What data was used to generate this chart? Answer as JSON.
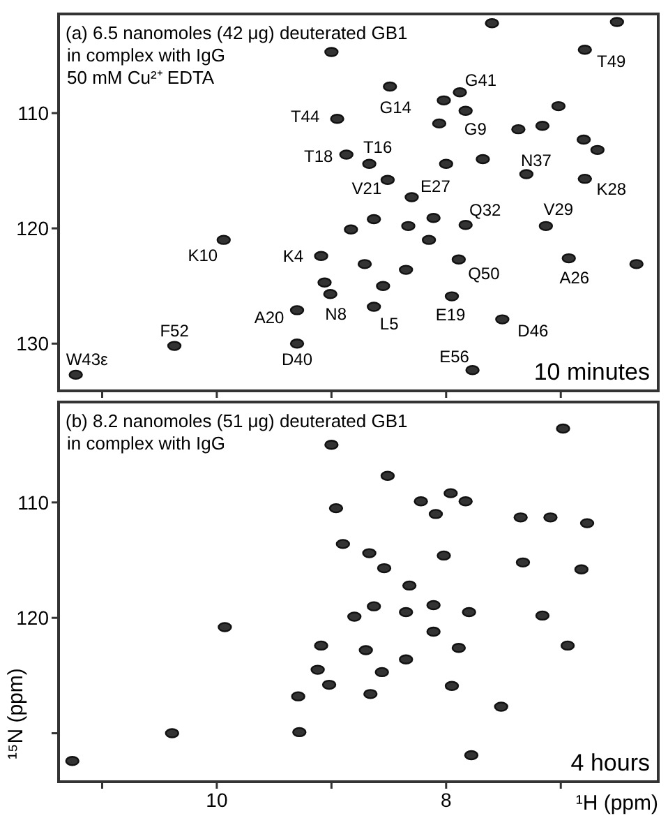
{
  "chart_data": [
    {
      "type": "scatter",
      "title": "(a) 6.5 nanomoles (42 μg) deuterated GB1",
      "subtitle": "in complex with IgG\n50 mM Cu²⁺ EDTA",
      "marker": "circle",
      "tick_labels": "y",
      "xlim": [
        11.38,
        6.15
      ],
      "ylim": [
        134.1,
        101.4
      ],
      "xticks": [
        {
          "value": 11,
          "label": null
        },
        {
          "value": 10,
          "label": null
        },
        {
          "value": 9,
          "label": null
        },
        {
          "value": 8,
          "label": null
        },
        {
          "value": 7,
          "label": null
        }
      ],
      "yticks": [
        110,
        120,
        130
      ],
      "series": [
        {
          "color": "#333333",
          "x": [
            7.6,
            6.51,
            9.0,
            6.79,
            8.49,
            7.88,
            8.95,
            8.02,
            7.83,
            7.02,
            8.06,
            7.37,
            7.16,
            6.8,
            6.68,
            8.87,
            8.67,
            8.0,
            7.68,
            7.3,
            6.79,
            8.51,
            8.3,
            8.63,
            8.33,
            8.11,
            7.83,
            7.13,
            8.83,
            8.15,
            9.94,
            9.09,
            8.71,
            6.93,
            6.34,
            7.89,
            8.35,
            9.06,
            9.01,
            8.55,
            7.95,
            9.3,
            8.63,
            7.51,
            10.37,
            9.3,
            11.23,
            7.77
          ],
          "values": [
            102.2,
            102.1,
            104.7,
            104.5,
            107.7,
            108.2,
            110.5,
            108.9,
            109.8,
            109.4,
            110.9,
            111.4,
            111.1,
            112.3,
            113.2,
            113.6,
            114.4,
            114.4,
            114.0,
            115.3,
            115.7,
            115.8,
            117.3,
            119.2,
            119.8,
            119.1,
            119.7,
            119.8,
            120.1,
            121.0,
            121.0,
            122.4,
            123.1,
            122.6,
            123.1,
            122.7,
            123.6,
            124.7,
            125.7,
            125.0,
            125.9,
            127.1,
            126.8,
            127.9,
            130.2,
            130.0,
            132.7,
            132.3
          ]
        }
      ],
      "annotations": [
        {
          "text": "T49",
          "x": 6.79,
          "y": 104.5
        },
        {
          "text": "G41",
          "x": 7.88,
          "y": 108.2
        },
        {
          "text": "G14",
          "x": 8.49,
          "y": 107.7
        },
        {
          "text": "T44",
          "x": 8.95,
          "y": 110.5
        },
        {
          "text": "G9",
          "x": 7.83,
          "y": 109.8
        },
        {
          "text": "T18",
          "x": 8.87,
          "y": 113.6
        },
        {
          "text": "T16",
          "x": 8.67,
          "y": 114.4
        },
        {
          "text": "N37",
          "x": 7.3,
          "y": 115.3
        },
        {
          "text": "V21",
          "x": 8.51,
          "y": 115.8
        },
        {
          "text": "E27",
          "x": 8.3,
          "y": 117.3
        },
        {
          "text": "K28",
          "x": 6.79,
          "y": 115.7
        },
        {
          "text": "Q32",
          "x": 7.83,
          "y": 119.7
        },
        {
          "text": "V29",
          "x": 7.13,
          "y": 119.8
        },
        {
          "text": "K10",
          "x": 9.94,
          "y": 121.0
        },
        {
          "text": "K4",
          "x": 9.09,
          "y": 122.4
        },
        {
          "text": "Q50",
          "x": 7.89,
          "y": 122.7
        },
        {
          "text": "A26",
          "x": 6.93,
          "y": 122.6
        },
        {
          "text": "N8",
          "x": 9.01,
          "y": 125.7
        },
        {
          "text": "A20",
          "x": 9.3,
          "y": 127.1
        },
        {
          "text": "E19",
          "x": 7.95,
          "y": 125.9
        },
        {
          "text": "L5",
          "x": 8.63,
          "y": 126.8
        },
        {
          "text": "D46",
          "x": 7.51,
          "y": 127.9
        },
        {
          "text": "F52",
          "x": 10.37,
          "y": 130.2
        },
        {
          "text": "E56",
          "x": 7.77,
          "y": 132.3
        },
        {
          "text": "D40",
          "x": 9.3,
          "y": 130.0
        },
        {
          "text": "W43ε",
          "x": 11.23,
          "y": 132.7
        },
        "10 minutes"
      ]
    },
    {
      "type": "scatter",
      "title": "(b) 8.2 nanomoles (51 μg) deuterated GB1",
      "subtitle": "in complex with IgG",
      "marker": "circle",
      "xlabel": "¹H (ppm)",
      "ylabel": "¹⁵N (ppm)",
      "xlim": [
        11.38,
        6.15
      ],
      "ylim": [
        134.2,
        101.3
      ],
      "xticks": [
        {
          "value": 11,
          "label": null
        },
        10,
        {
          "value": 9,
          "label": null
        },
        8,
        {
          "value": 7,
          "label": null
        }
      ],
      "yticks": [
        110,
        120,
        {
          "value": 130,
          "label": null
        }
      ],
      "series": [
        {
          "color": "#333333",
          "x": [
            6.98,
            9.0,
            8.51,
            8.96,
            7.96,
            7.83,
            8.22,
            8.09,
            7.35,
            7.09,
            6.77,
            8.9,
            8.67,
            8.02,
            7.33,
            6.82,
            8.54,
            8.32,
            8.63,
            8.8,
            8.35,
            8.11,
            7.8,
            7.16,
            9.93,
            8.11,
            9.09,
            6.94,
            8.7,
            8.35,
            7.89,
            9.12,
            9.02,
            8.56,
            7.95,
            9.29,
            8.66,
            7.52,
            10.39,
            9.28,
            7.78,
            11.26
          ],
          "values": [
            103.6,
            105.0,
            107.7,
            110.5,
            109.2,
            109.9,
            109.9,
            111.0,
            111.3,
            111.3,
            111.8,
            113.6,
            114.4,
            114.6,
            115.2,
            115.8,
            115.7,
            117.2,
            119.0,
            119.9,
            119.5,
            118.9,
            119.5,
            119.8,
            120.8,
            121.2,
            122.4,
            122.4,
            122.8,
            123.6,
            122.6,
            124.5,
            125.8,
            124.7,
            125.9,
            126.8,
            126.6,
            127.7,
            130.0,
            129.9,
            131.9,
            132.4
          ]
        }
      ],
      "annotations": [
        "4 hours"
      ]
    }
  ]
}
